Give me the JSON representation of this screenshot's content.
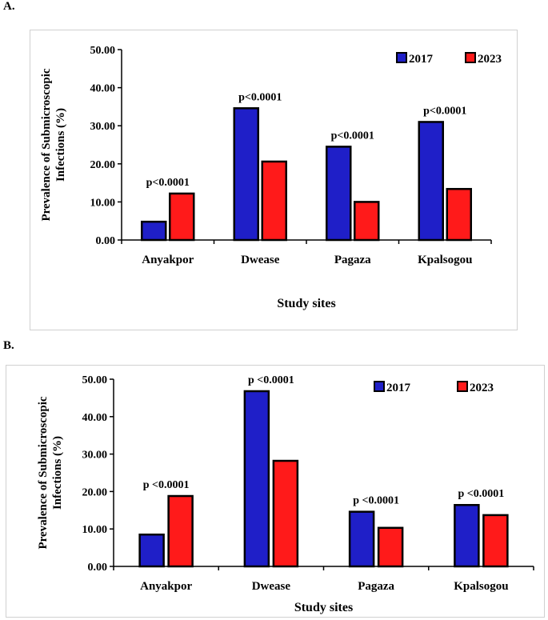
{
  "chart_data": [
    {
      "panel_label": "A.",
      "type": "bar",
      "categories": [
        "Anyakpor",
        "Dwease",
        "Pagaza",
        "Kpalsogou"
      ],
      "series": [
        {
          "name": "2017",
          "color": "#1f1fc8",
          "values": [
            4.8,
            34.6,
            24.5,
            31.0
          ]
        },
        {
          "name": "2023",
          "color": "#ff1a1a",
          "values": [
            12.2,
            20.6,
            10.0,
            13.4
          ]
        }
      ],
      "annotations": [
        "p<0.0001",
        "p<0.0001",
        "p<0.0001",
        "p<0.0001"
      ],
      "ylabel_line1": "Prevalence of Submicroscopic",
      "ylabel_line2": "Infections  (%)",
      "xlabel": "Study sites",
      "ylim": [
        0,
        50
      ],
      "yticks": [
        "0.00",
        "10.00",
        "20.00",
        "30.00",
        "40.00",
        "50.00"
      ],
      "legend_position": "top-right",
      "grid": false
    },
    {
      "panel_label": "B.",
      "type": "bar",
      "categories": [
        "Anyakpor",
        "Dwease",
        "Pagaza",
        "Kpalsogou"
      ],
      "series": [
        {
          "name": "2017",
          "color": "#1f1fc8",
          "values": [
            8.5,
            46.8,
            14.6,
            16.4
          ]
        },
        {
          "name": "2023",
          "color": "#ff1a1a",
          "values": [
            18.8,
            28.2,
            10.3,
            13.7
          ]
        }
      ],
      "annotations": [
        "p <0.0001",
        "p <0.0001",
        "p <0.0001",
        "p <0.0001"
      ],
      "ylabel_line1": "Prevalence of Submicroscopic",
      "ylabel_line2": "Infections  (%)",
      "xlabel": "Study sites",
      "ylim": [
        0,
        50
      ],
      "yticks": [
        "0.00",
        "10.00",
        "20.00",
        "30.00",
        "40.00",
        "50.00"
      ],
      "legend_position": "top-right",
      "grid": false
    }
  ]
}
